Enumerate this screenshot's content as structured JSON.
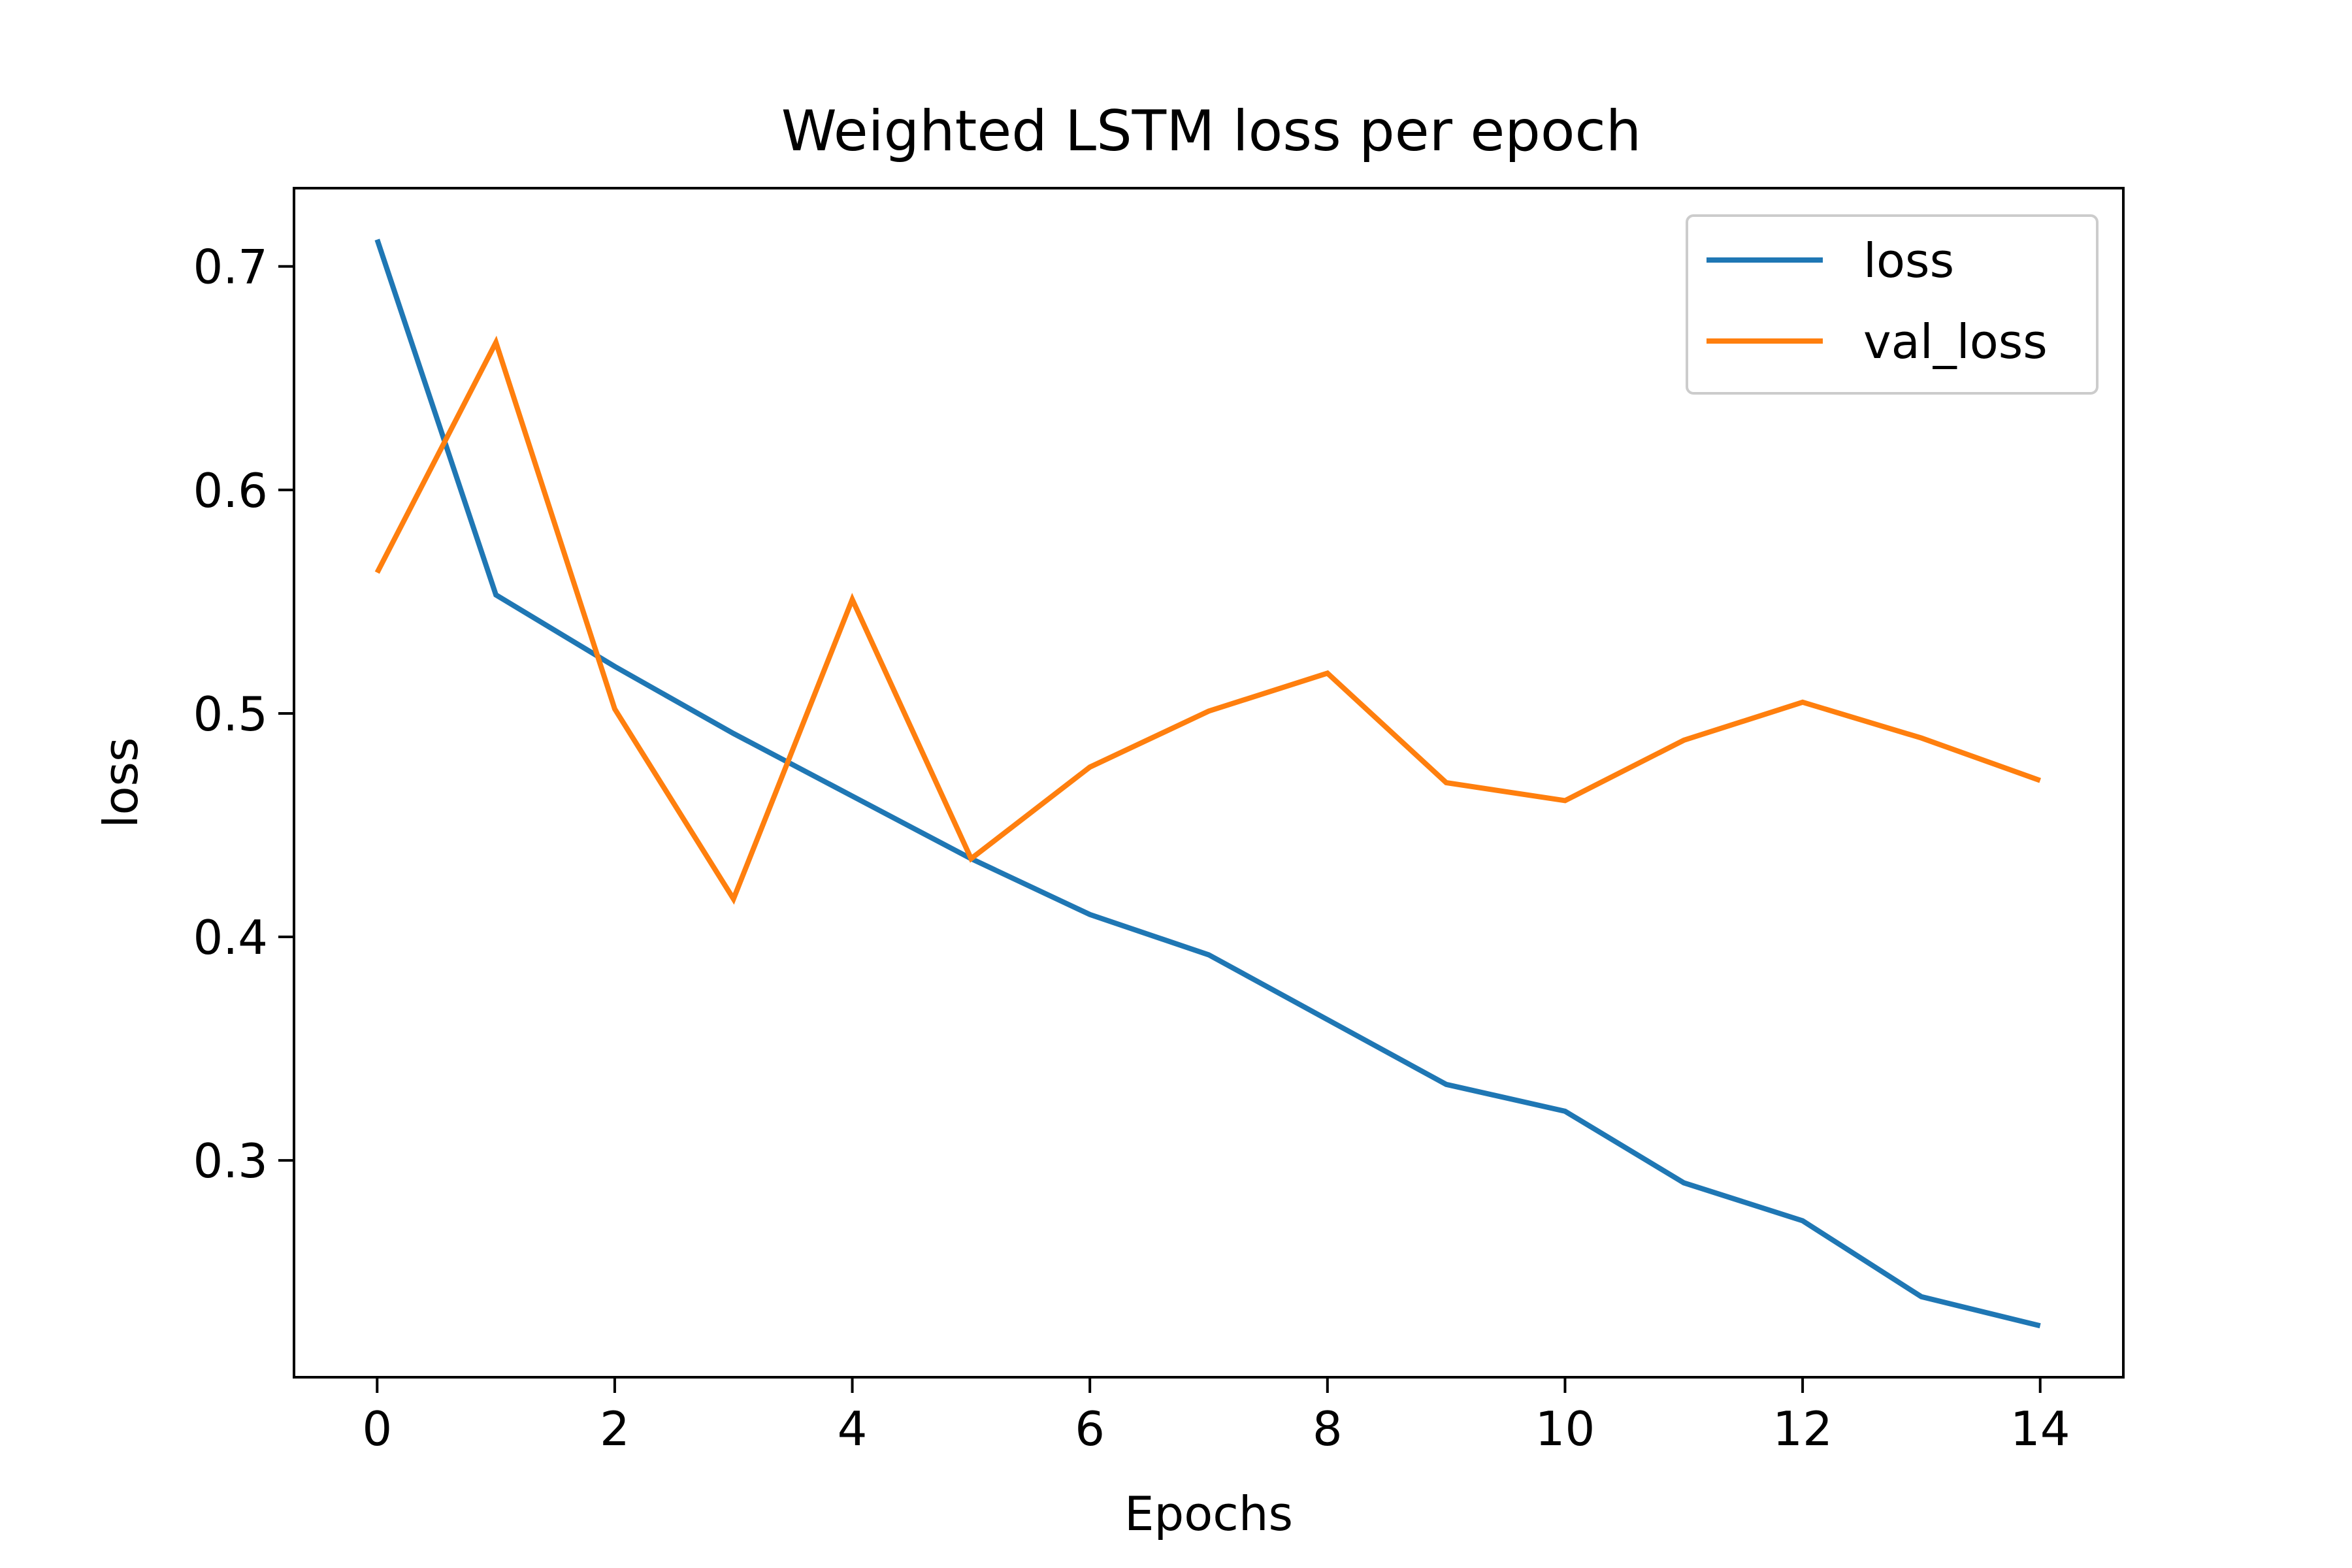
{
  "chart_data": {
    "type": "line",
    "title": "Weighted LSTM loss per epoch",
    "xlabel": "Epochs",
    "ylabel": "loss",
    "x": [
      0,
      1,
      2,
      3,
      4,
      5,
      6,
      7,
      8,
      9,
      10,
      11,
      12,
      13,
      14
    ],
    "xlim": [
      -0.7,
      14.7
    ],
    "ylim": [
      0.203,
      0.735
    ],
    "xticks": [
      0,
      2,
      4,
      6,
      8,
      10,
      12,
      14
    ],
    "yticks": [
      0.3,
      0.4,
      0.5,
      0.6,
      0.7
    ],
    "xtick_labels": [
      "0",
      "2",
      "4",
      "6",
      "8",
      "10",
      "12",
      "14"
    ],
    "ytick_labels": [
      "0.3",
      "0.4",
      "0.5",
      "0.6",
      "0.7"
    ],
    "grid": false,
    "legend_position": "top-right",
    "series": [
      {
        "name": "loss",
        "color": "#1f77b4",
        "values": [
          0.712,
          0.553,
          0.521,
          0.491,
          0.463,
          0.435,
          0.41,
          0.392,
          0.363,
          0.334,
          0.322,
          0.29,
          0.273,
          0.239,
          0.226
        ]
      },
      {
        "name": "val_loss",
        "color": "#ff7f0e",
        "values": [
          0.563,
          0.666,
          0.502,
          0.417,
          0.551,
          0.435,
          0.476,
          0.501,
          0.518,
          0.469,
          0.461,
          0.488,
          0.505,
          0.489,
          0.47
        ]
      }
    ]
  }
}
